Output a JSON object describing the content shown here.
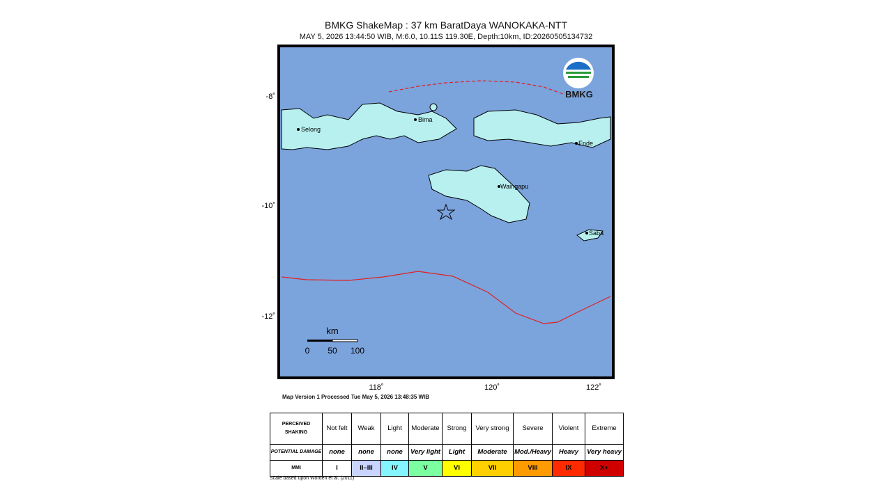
{
  "header": {
    "title": "BMKG ShakeMap : 37 km BaratDaya WANOKAKA-NTT",
    "subtitle": "MAY 5, 2026 13:44:50 WIB, M:6.0, 10.11S 119.30E, Depth:10km, ID:20260505134732"
  },
  "map": {
    "places": [
      "Selong",
      "Bima",
      "Ende",
      "Waingapu",
      "Saba"
    ],
    "logo": "BMKG",
    "lat_labels": [
      "-8˚",
      "-10˚",
      "-12˚"
    ],
    "lon_labels": [
      "118˚",
      "120˚",
      "122˚"
    ],
    "scale": {
      "unit": "km",
      "labels": [
        "0",
        "50",
        "100"
      ]
    },
    "version": "Map Version 1 Processed Tue May  5, 2026 13:48:35 WIB"
  },
  "legend": {
    "rows": [
      [
        "PERCEIVED SHAKING",
        "Not felt",
        "Weak",
        "Light",
        "Moderate",
        "Strong",
        "Very strong",
        "Severe",
        "Violent",
        "Extreme"
      ],
      [
        "POTENTIAL DAMAGE",
        "none",
        "none",
        "none",
        "Very light",
        "Light",
        "Moderate",
        "Mod./Heavy",
        "Heavy",
        "Very heavy"
      ],
      [
        "MMI",
        "I",
        "II–III",
        "IV",
        "V",
        "VI",
        "VII",
        "VIII",
        "IX",
        "X+"
      ]
    ],
    "note": "Scale based upon Worden et al. (2011)"
  }
}
